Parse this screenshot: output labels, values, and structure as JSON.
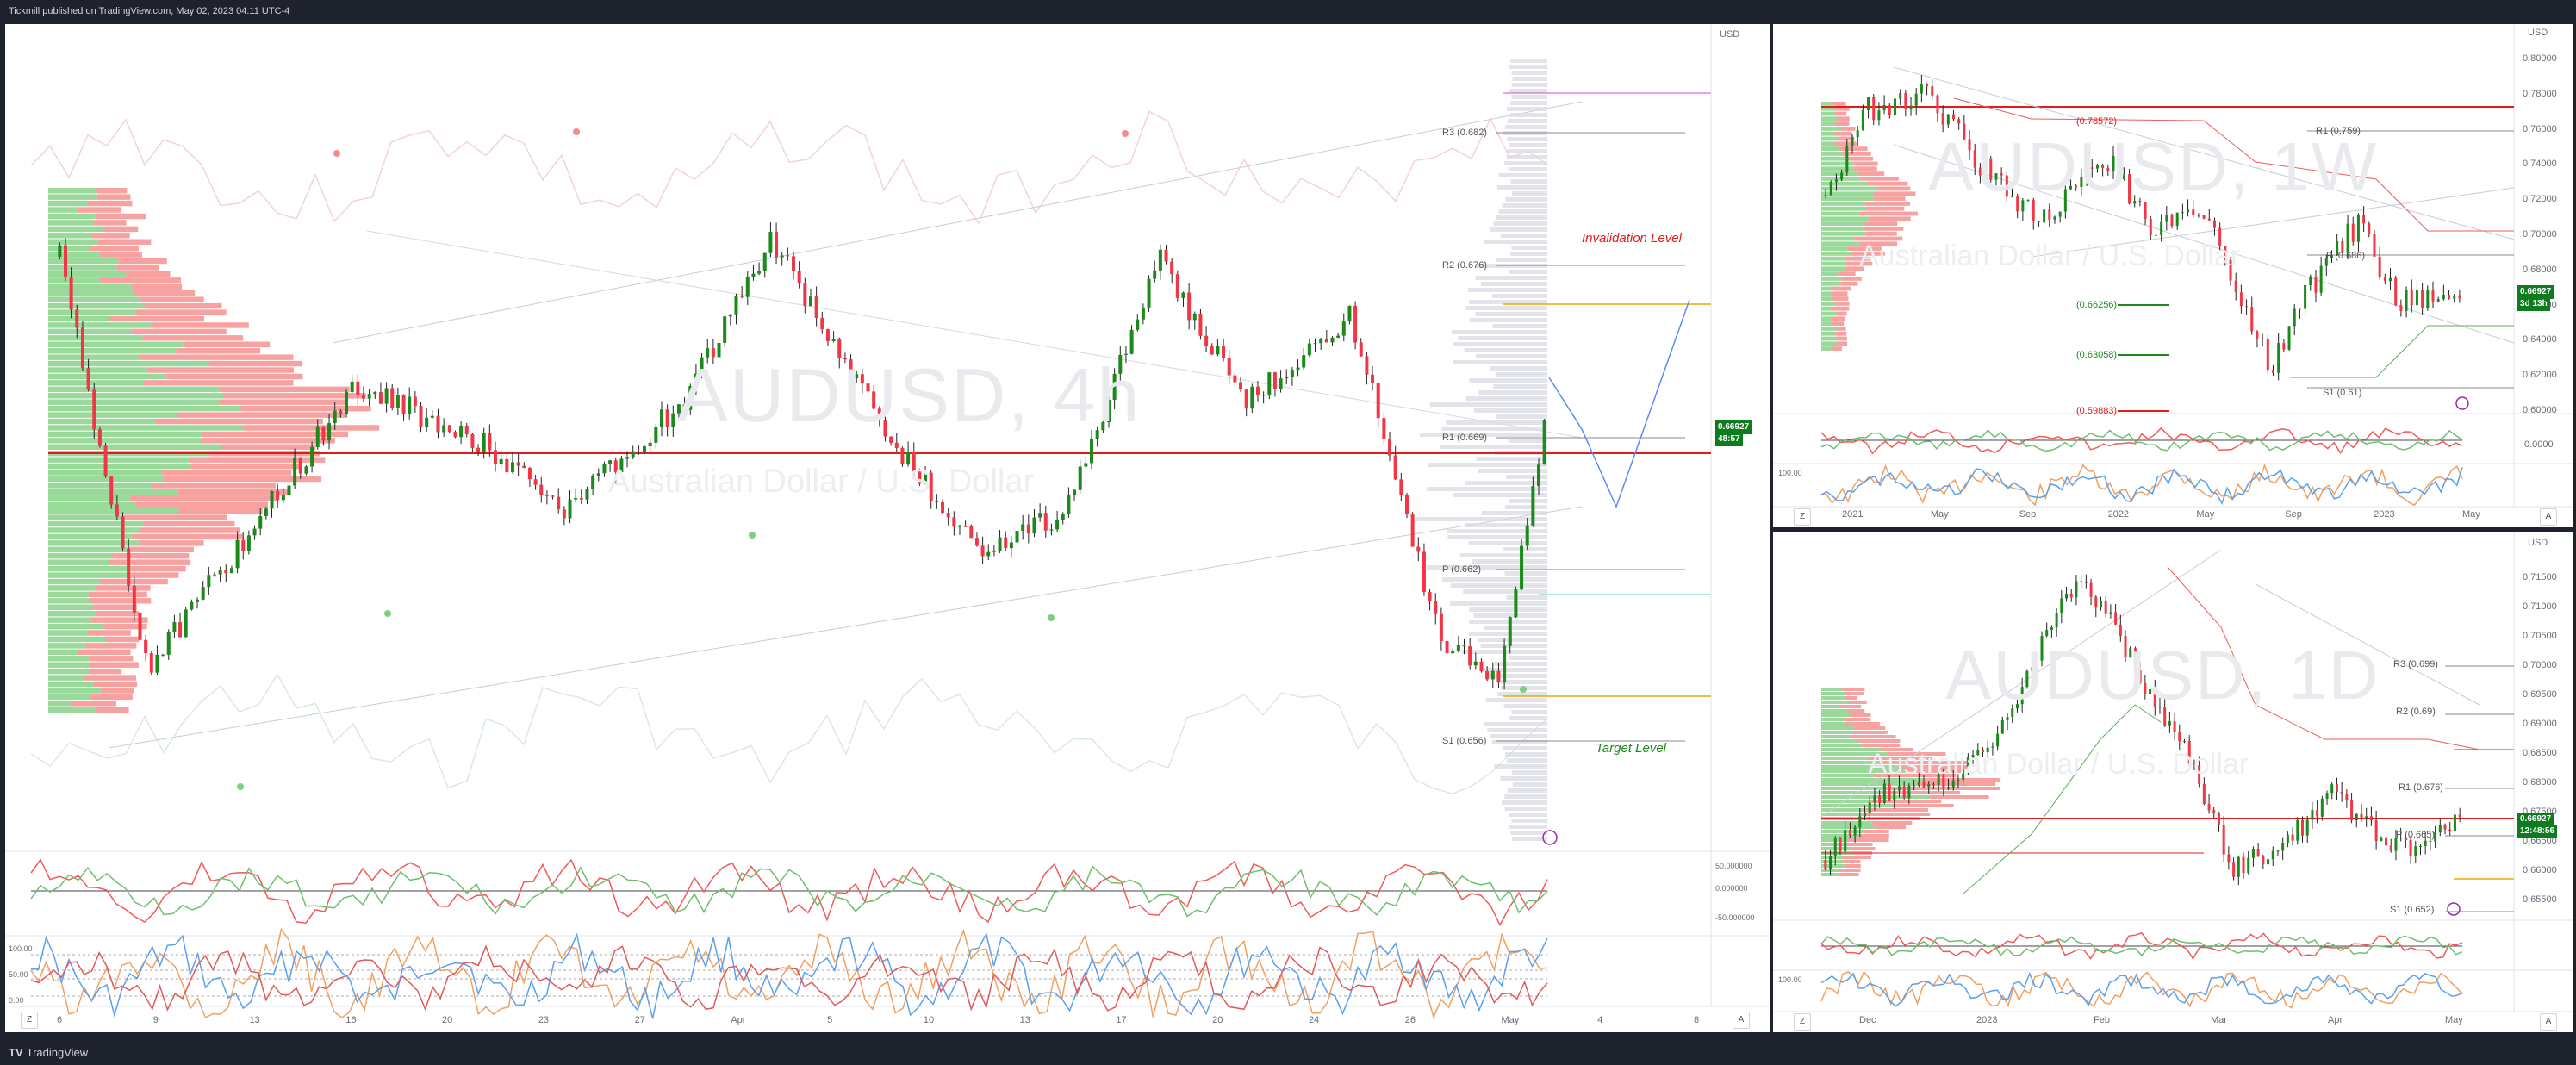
{
  "header": {
    "publisher_text": "Tickmill published on TradingView.com, May 02, 2023 04:11 UTC-4"
  },
  "footer": {
    "logo_text": "TradingView",
    "logo_icon": "tradingview-logo-icon"
  },
  "colors": {
    "up": "#1b8a1b",
    "down": "#f23645",
    "volume_up": "#7fcf7f",
    "volume_down": "#f58a8a",
    "poc": "#e31b1b",
    "badge": "#0d7c1f",
    "projection": "#5b8cf5"
  },
  "panels": {
    "main": {
      "symbol_watermark": "AUDUSD, 4h",
      "name_watermark": "Australian Dollar / U.S. Dollar",
      "price_badge": "0.66927",
      "timer_badge": "48:57",
      "currency_label": "USD",
      "annotations": {
        "invalidation": "Invalidation Level",
        "target": "Target Level"
      },
      "pivots": [
        "R3 (0.682)",
        "R2 (0.676)",
        "R1 (0.669)",
        "P (0.662)",
        "S1 (0.656)"
      ],
      "x_ticks": [
        "6",
        "9",
        "13",
        "16",
        "20",
        "23",
        "27",
        "Apr",
        "5",
        "10",
        "13",
        "17",
        "20",
        "24",
        "26",
        "May",
        "4",
        "8"
      ],
      "osc_labels": [
        "50.000000",
        "0.000000",
        "-50.000000"
      ],
      "stoch_labels": [
        "100.00",
        "50.00",
        "0.00"
      ],
      "scale_button": "A",
      "timezone_button": "Z"
    },
    "weekly": {
      "symbol_watermark": "AUDUSD, 1W",
      "name_watermark": "Australian Dollar / U.S. Dollar",
      "price_badge": "0.66927",
      "timer_badge": "3d 13h",
      "currency_label": "USD",
      "y_ticks": [
        "0.80000",
        "0.78000",
        "0.76000",
        "0.74000",
        "0.72000",
        "0.70000",
        "0.68000",
        "0.66000",
        "0.64000",
        "0.62000",
        "0.60000"
      ],
      "osc_ticks": [
        "0.0000"
      ],
      "stoch_label": "100.00",
      "x_ticks": [
        "2021",
        "May",
        "Sep",
        "2022",
        "May",
        "Sep",
        "2023",
        "May"
      ],
      "levels": [
        "(0.76572)",
        "R1 (0.759)",
        "P (0.686)",
        "(0.66256)",
        "(0.63058)",
        "S1 (0.61)",
        "(0.59883)"
      ],
      "scale_button": "A",
      "timezone_button": "Z"
    },
    "daily": {
      "symbol_watermark": "AUDUSD, 1D",
      "name_watermark": "Australian Dollar / U.S. Dollar",
      "price_badge": "0.66927",
      "timer_badge": "12:48:56",
      "currency_label": "USD",
      "y_ticks": [
        "0.71500",
        "0.71000",
        "0.70500",
        "0.70000",
        "0.69500",
        "0.69000",
        "0.68500",
        "0.68000",
        "0.67500",
        "0.66500",
        "0.66000",
        "0.65500"
      ],
      "stoch_label": "100.00",
      "x_ticks": [
        "Dec",
        "2023",
        "Feb",
        "Mar",
        "Apr",
        "May"
      ],
      "pivots": [
        "R3 (0.699)",
        "R2 (0.69)",
        "R1 (0.676)",
        "P (0.665)",
        "S1 (0.652)"
      ],
      "scale_button": "A",
      "timezone_button": "Z"
    }
  }
}
